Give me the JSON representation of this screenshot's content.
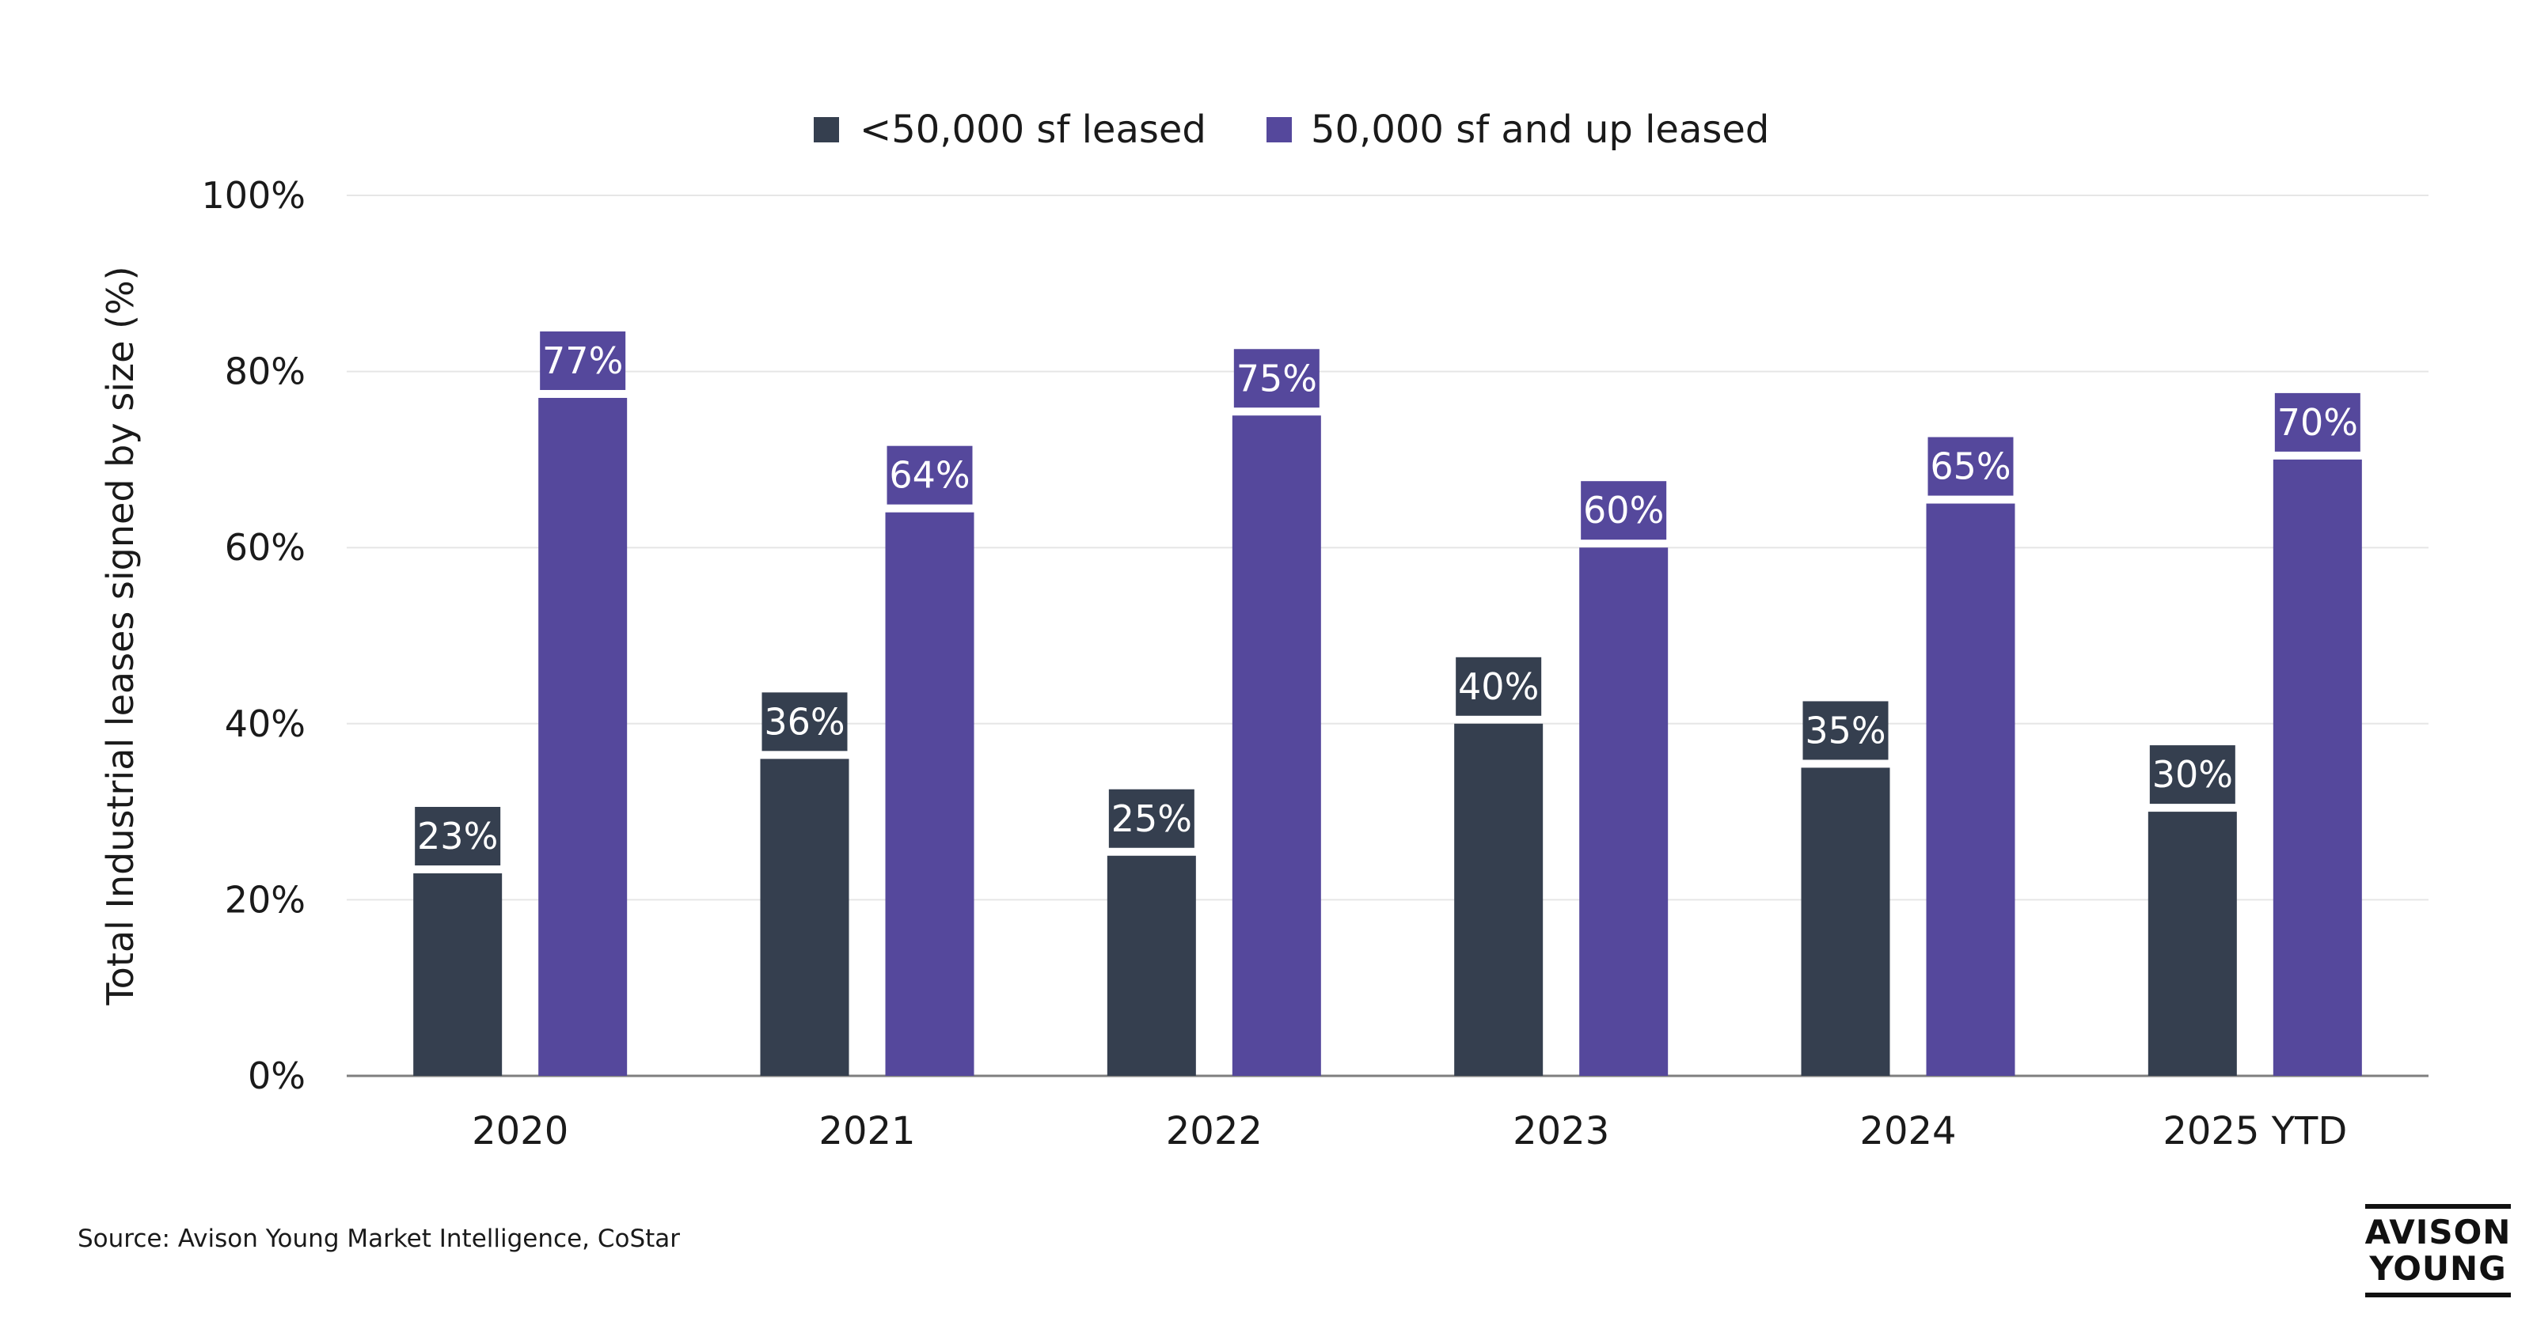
{
  "chart_data": {
    "type": "bar",
    "title": "",
    "xlabel": "",
    "ylabel": "Total Industrial leases signed by size (%)",
    "ylim": [
      0,
      100
    ],
    "yticks": [
      0,
      20,
      40,
      60,
      80,
      100
    ],
    "ytick_labels": [
      "0%",
      "20%",
      "40%",
      "60%",
      "80%",
      "100%"
    ],
    "grid": true,
    "legend_position": "top-center",
    "categories": [
      "2020",
      "2021",
      "2022",
      "2023",
      "2024",
      "2025 YTD"
    ],
    "series": [
      {
        "name": "<50,000 sf leased",
        "color": "#353f4f",
        "values": [
          23,
          36,
          25,
          40,
          35,
          30
        ],
        "labels": [
          "23%",
          "36%",
          "25%",
          "40%",
          "35%",
          "30%"
        ]
      },
      {
        "name": "50,000 sf and up leased",
        "color": "#55489c",
        "values": [
          77,
          64,
          75,
          60,
          65,
          70
        ],
        "labels": [
          "77%",
          "64%",
          "75%",
          "60%",
          "65%",
          "70%"
        ]
      }
    ]
  },
  "footer": {
    "source": "Source: Avison Young Market Intelligence, CoStar",
    "logo_line1": "AVISON",
    "logo_line2": "YOUNG"
  }
}
